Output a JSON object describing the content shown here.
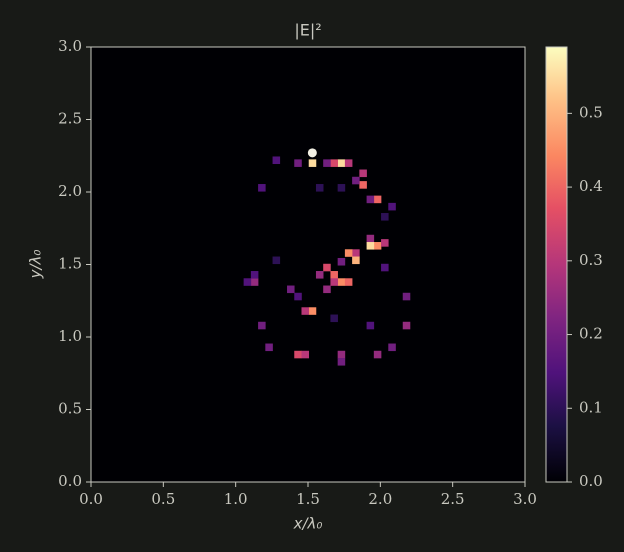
{
  "chart_data": {
    "type": "heatmap",
    "title": "|E|²",
    "x_label": "x/λ₀",
    "y_label": "y/λ₀",
    "xlim": [
      0.0,
      3.0
    ],
    "ylim": [
      0.0,
      3.0
    ],
    "xticks": [
      {
        "value": 0,
        "label": "0.0"
      },
      {
        "value": 0.5,
        "label": "0.5"
      },
      {
        "value": 1,
        "label": "1.0"
      },
      {
        "value": 1.5,
        "label": "1.5"
      },
      {
        "value": 2,
        "label": "2.0"
      },
      {
        "value": 2.5,
        "label": "2.5"
      },
      {
        "value": 3,
        "label": "3.0"
      }
    ],
    "yticks": [
      {
        "value": 0,
        "label": "0.0"
      },
      {
        "value": 0.5,
        "label": "0.5"
      },
      {
        "value": 1,
        "label": "1.0"
      },
      {
        "value": 1.5,
        "label": "1.5"
      },
      {
        "value": 2,
        "label": "2.0"
      },
      {
        "value": 2.5,
        "label": "2.5"
      },
      {
        "value": 3,
        "label": "3.0"
      }
    ],
    "colormap": "magma",
    "cell_size": 0.05,
    "x": [
      1.53,
      1.73,
      1.68,
      1.78,
      1.43,
      1.63,
      1.88,
      1.88,
      1.83,
      1.28,
      1.98,
      1.93,
      2.08,
      1.93,
      1.98,
      1.93,
      2.03,
      1.83,
      1.78,
      1.83,
      1.73,
      1.63,
      1.68,
      1.73,
      1.78,
      1.68,
      1.58,
      1.63,
      1.53,
      1.48,
      1.43,
      1.38,
      1.13,
      1.08,
      1.13,
      2.18,
      2.18,
      1.18,
      1.23,
      1.43,
      1.48,
      1.73,
      1.73,
      1.98,
      2.08,
      1.93,
      1.68,
      1.18,
      1.28,
      2.03,
      2.03,
      1.58,
      1.73
    ],
    "y": [
      2.2,
      2.2,
      2.2,
      2.2,
      2.2,
      2.2,
      2.13,
      2.05,
      2.08,
      2.22,
      1.95,
      1.95,
      1.9,
      1.68,
      1.63,
      1.63,
      1.65,
      1.58,
      1.58,
      1.53,
      1.52,
      1.48,
      1.43,
      1.38,
      1.38,
      1.38,
      1.43,
      1.33,
      1.18,
      1.18,
      1.28,
      1.33,
      1.38,
      1.38,
      1.43,
      1.28,
      1.08,
      1.08,
      0.93,
      0.88,
      0.88,
      0.88,
      0.83,
      0.88,
      0.93,
      1.08,
      1.13,
      2.03,
      1.53,
      1.48,
      1.83,
      2.03,
      2.03
    ],
    "values": [
      0.55,
      0.55,
      0.35,
      0.3,
      0.2,
      0.2,
      0.3,
      0.4,
      0.2,
      0.15,
      0.4,
      0.2,
      0.15,
      0.25,
      0.45,
      0.55,
      0.3,
      0.3,
      0.45,
      0.5,
      0.2,
      0.35,
      0.4,
      0.45,
      0.4,
      0.3,
      0.25,
      0.25,
      0.45,
      0.3,
      0.15,
      0.2,
      0.25,
      0.15,
      0.15,
      0.2,
      0.25,
      0.2,
      0.2,
      0.35,
      0.3,
      0.25,
      0.2,
      0.25,
      0.2,
      0.15,
      0.1,
      0.15,
      0.1,
      0.15,
      0.1,
      0.1,
      0.1
    ],
    "marker": {
      "x": 1.53,
      "y": 2.27,
      "color": "#f2f0e4"
    },
    "colorbar": {
      "ylim": [
        0,
        0.59
      ],
      "yticks": [
        {
          "value": 0,
          "label": "0.0"
        },
        {
          "value": 0.1,
          "label": "0.1"
        },
        {
          "value": 0.2,
          "label": "0.2"
        },
        {
          "value": 0.3,
          "label": "0.3"
        },
        {
          "value": 0.4,
          "label": "0.4"
        },
        {
          "value": 0.5,
          "label": "0.5"
        }
      ]
    }
  }
}
